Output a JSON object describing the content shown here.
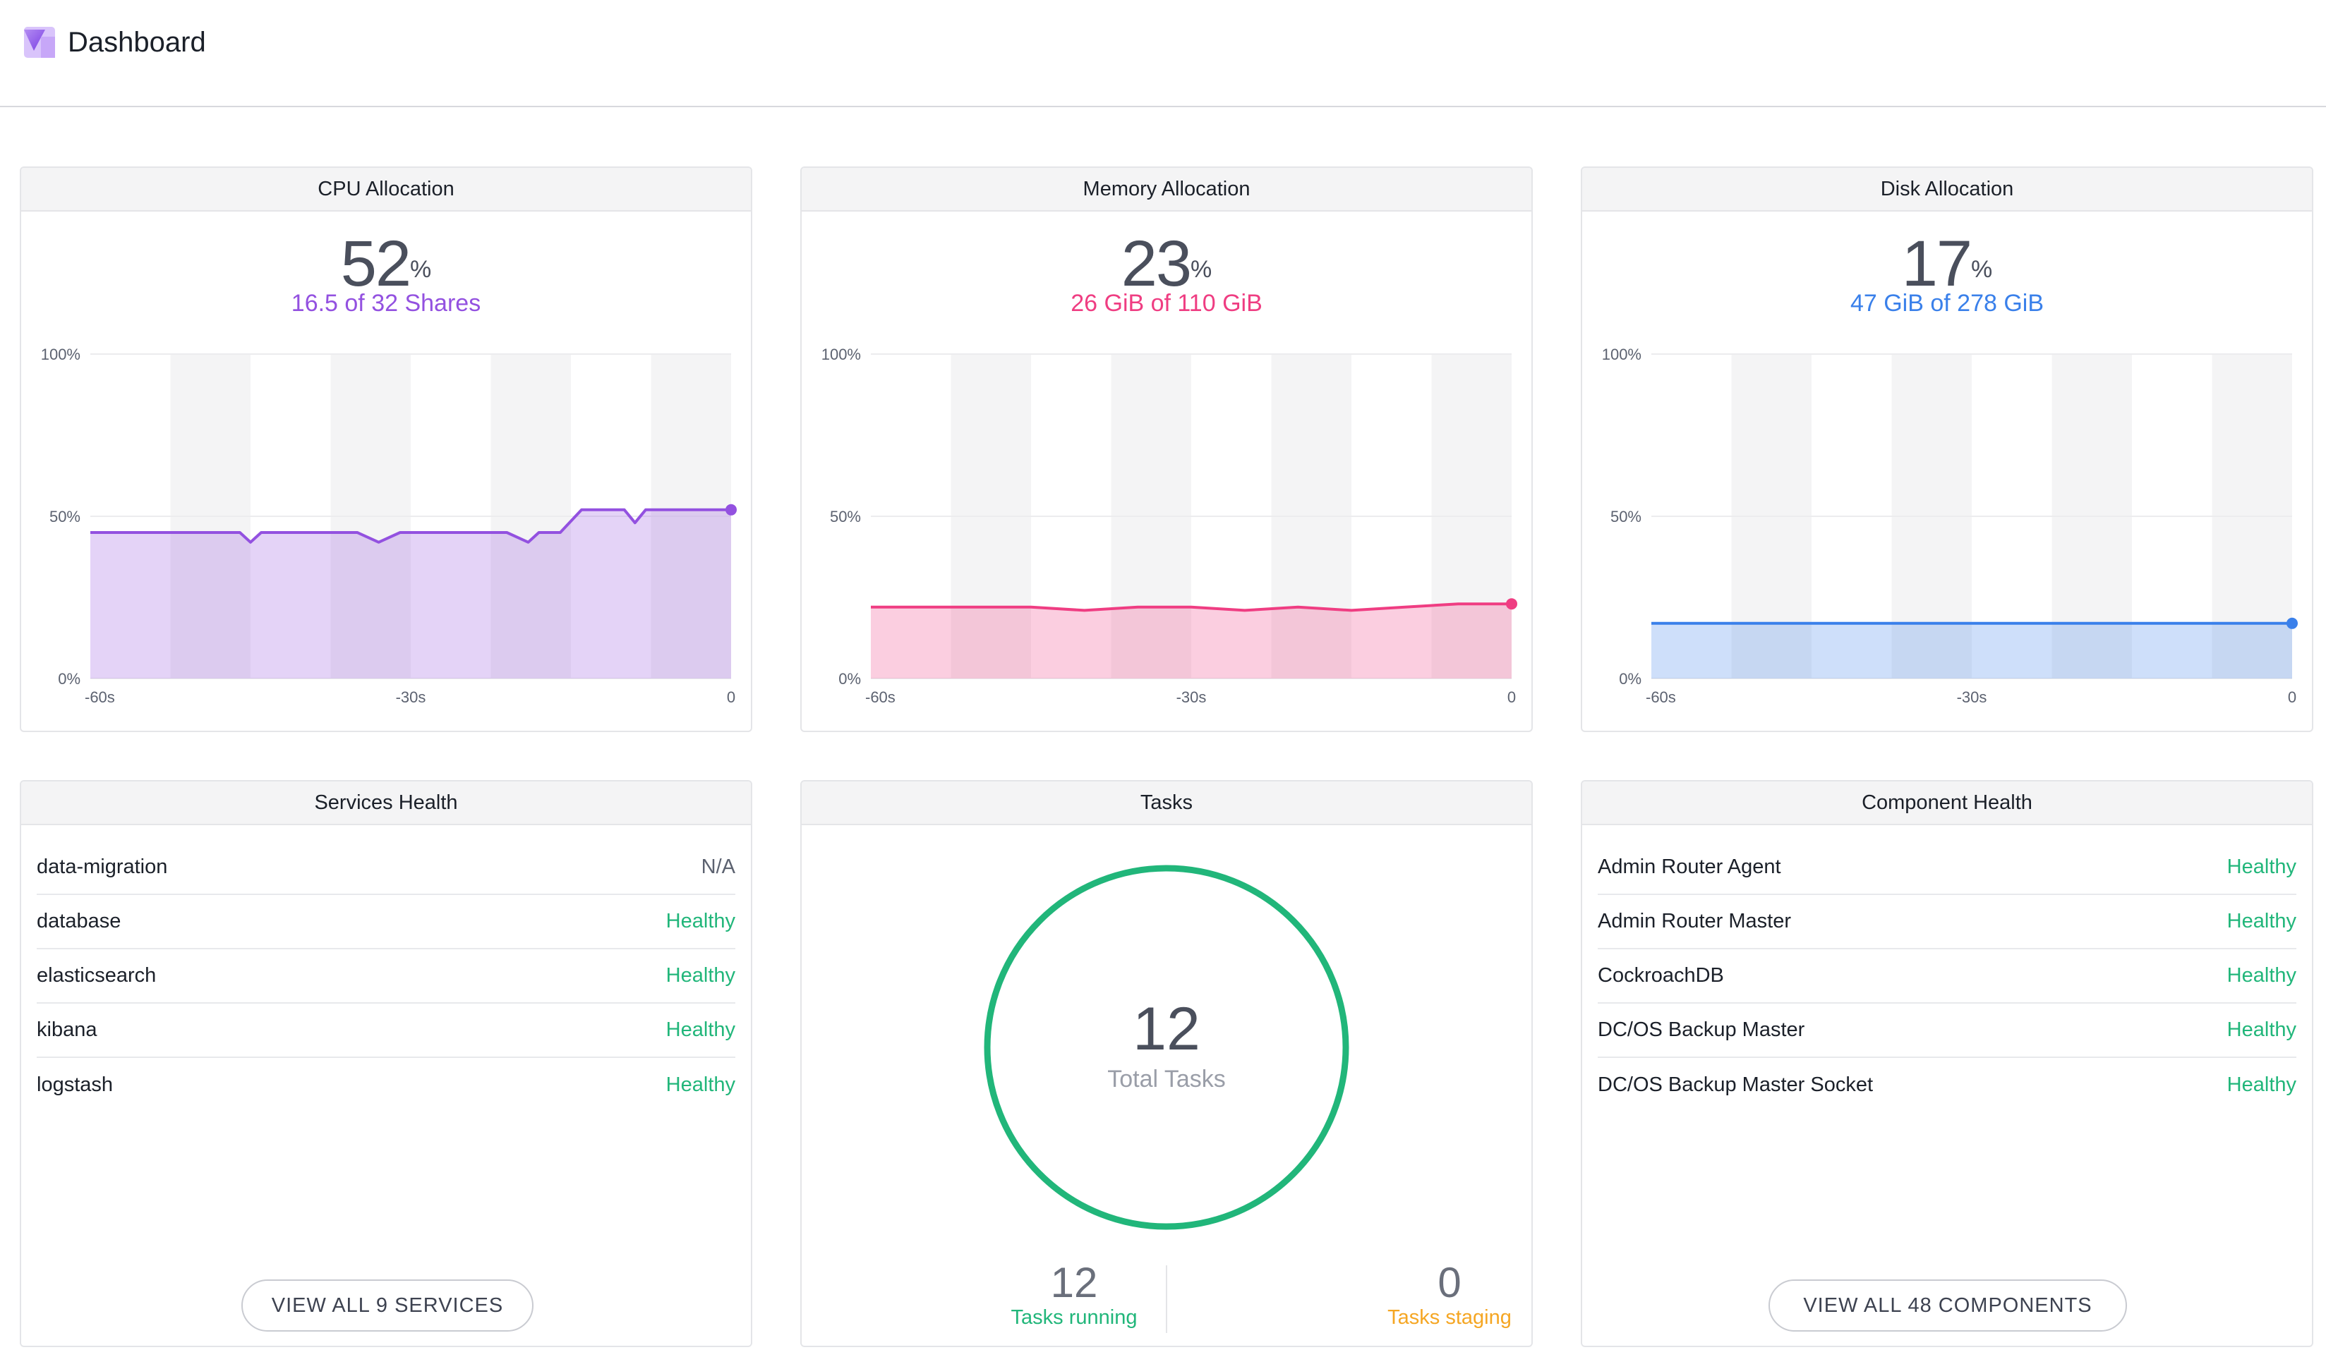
{
  "header": {
    "title": "Dashboard",
    "logo_icon": "dcos-logo-icon"
  },
  "colors": {
    "cpu": "#9351e0",
    "memory": "#ef3d82",
    "disk": "#3a80ea",
    "healthy": "#21b67a",
    "staging": "#f5a623"
  },
  "cpu": {
    "title": "CPU Allocation",
    "percent": "52",
    "percent_sign": "%",
    "detail": "16.5 of 32 Shares",
    "chart_data": {
      "type": "area",
      "x": [
        -60,
        -55,
        -50,
        -46,
        -45,
        -44,
        -40,
        -35,
        -33,
        -31,
        -26,
        -21,
        -19,
        -18,
        -16,
        -14,
        -12,
        -10,
        -9,
        -8,
        -6,
        -4,
        -2,
        0
      ],
      "values": [
        45,
        45,
        45,
        45,
        42,
        45,
        45,
        45,
        42,
        45,
        45,
        45,
        42,
        45,
        45,
        52,
        52,
        52,
        48,
        52,
        52,
        52,
        52,
        52
      ],
      "yticks": [
        "100%",
        "50%",
        "0%"
      ],
      "xticks": [
        "-60s",
        "-30s",
        "0"
      ],
      "ylim": [
        0,
        100
      ],
      "xlim": [
        -60,
        0
      ]
    }
  },
  "memory": {
    "title": "Memory Allocation",
    "percent": "23",
    "percent_sign": "%",
    "detail": "26 GiB of 110 GiB",
    "chart_data": {
      "type": "area",
      "x": [
        -60,
        -50,
        -45,
        -40,
        -35,
        -30,
        -25,
        -20,
        -15,
        -10,
        -5,
        0
      ],
      "values": [
        22,
        22,
        22,
        21,
        22,
        22,
        21,
        22,
        21,
        22,
        23,
        23
      ],
      "yticks": [
        "100%",
        "50%",
        "0%"
      ],
      "xticks": [
        "-60s",
        "-30s",
        "0"
      ],
      "ylim": [
        0,
        100
      ],
      "xlim": [
        -60,
        0
      ]
    }
  },
  "disk": {
    "title": "Disk Allocation",
    "percent": "17",
    "percent_sign": "%",
    "detail": "47 GiB of 278 GiB",
    "chart_data": {
      "type": "area",
      "x": [
        -60,
        0
      ],
      "values": [
        17,
        17
      ],
      "yticks": [
        "100%",
        "50%",
        "0%"
      ],
      "xticks": [
        "-60s",
        "-30s",
        "0"
      ],
      "ylim": [
        0,
        100
      ],
      "xlim": [
        -60,
        0
      ]
    }
  },
  "services": {
    "title": "Services Health",
    "items": [
      {
        "name": "data-migration",
        "status": "N/A"
      },
      {
        "name": "database",
        "status": "Healthy"
      },
      {
        "name": "elasticsearch",
        "status": "Healthy"
      },
      {
        "name": "kibana",
        "status": "Healthy"
      },
      {
        "name": "logstash",
        "status": "Healthy"
      }
    ],
    "button_label": "VIEW ALL 9 SERVICES"
  },
  "tasks": {
    "title": "Tasks",
    "total": "12",
    "total_label": "Total Tasks",
    "running": "12",
    "running_label": "Tasks running",
    "staging": "0",
    "staging_label": "Tasks staging"
  },
  "components": {
    "title": "Component Health",
    "items": [
      {
        "name": "Admin Router Agent",
        "status": "Healthy"
      },
      {
        "name": "Admin Router Master",
        "status": "Healthy"
      },
      {
        "name": "CockroachDB",
        "status": "Healthy"
      },
      {
        "name": "DC/OS Backup Master",
        "status": "Healthy"
      },
      {
        "name": "DC/OS Backup Master Socket",
        "status": "Healthy"
      }
    ],
    "button_label": "VIEW ALL 48 COMPONENTS"
  }
}
